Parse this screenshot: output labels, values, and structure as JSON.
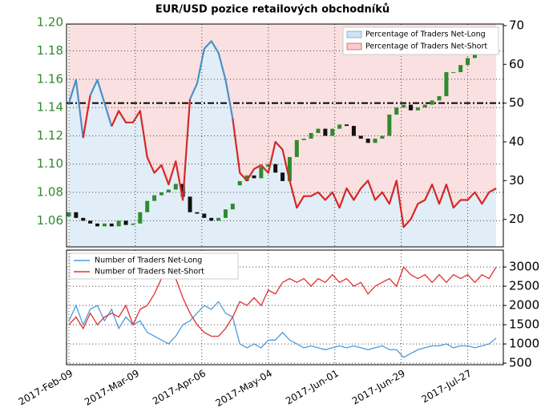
{
  "chart_data": [
    {
      "type": "candlestick_line",
      "title": "EUR/USD pozice retailových obchodníků",
      "x": [
        "2017-02-09",
        "2017-02-12",
        "2017-02-15",
        "2017-02-18",
        "2017-02-21",
        "2017-02-24",
        "2017-02-27",
        "2017-03-02",
        "2017-03-05",
        "2017-03-08",
        "2017-03-11",
        "2017-03-14",
        "2017-03-17",
        "2017-03-20",
        "2017-03-23",
        "2017-03-26",
        "2017-03-29",
        "2017-04-01",
        "2017-04-04",
        "2017-04-07",
        "2017-04-10",
        "2017-04-13",
        "2017-04-16",
        "2017-04-19",
        "2017-04-22",
        "2017-04-25",
        "2017-04-28",
        "2017-05-01",
        "2017-05-04",
        "2017-05-07",
        "2017-05-10",
        "2017-05-13",
        "2017-05-16",
        "2017-05-19",
        "2017-05-22",
        "2017-05-25",
        "2017-05-28",
        "2017-05-31",
        "2017-06-03",
        "2017-06-06",
        "2017-06-09",
        "2017-06-12",
        "2017-06-15",
        "2017-06-18",
        "2017-06-21",
        "2017-06-24",
        "2017-06-27",
        "2017-06-30",
        "2017-07-03",
        "2017-07-06",
        "2017-07-09",
        "2017-07-12",
        "2017-07-15",
        "2017-07-18",
        "2017-07-21",
        "2017-07-24",
        "2017-07-27",
        "2017-07-30",
        "2017-08-02",
        "2017-08-05",
        "2017-08-08"
      ],
      "xlim": [
        "2017-02-08",
        "2017-08-11"
      ],
      "ylim": [
        1.0415,
        1.199
      ],
      "yticks": [
        1.06,
        1.08,
        {
          "value": 1.1,
          "label": "1.10"
        },
        1.12,
        1.14,
        1.16,
        1.18,
        {
          "value": 1.2,
          "label": "1.20"
        }
      ],
      "y2lim": [
        12.9,
        70.4
      ],
      "y2ticks": [
        20,
        30,
        40,
        50,
        60,
        70
      ],
      "hline": 50,
      "grid": true,
      "price": {
        "up_color": "#2e8b2e",
        "down_color": "#111111",
        "open": [
          1.063,
          1.066,
          1.062,
          1.06,
          1.058,
          1.056,
          1.058,
          1.056,
          1.06,
          1.057,
          1.058,
          1.066,
          1.074,
          1.078,
          1.08,
          1.082,
          1.086,
          1.077,
          1.066,
          1.065,
          1.062,
          1.06,
          1.062,
          1.068,
          1.085,
          1.088,
          1.092,
          1.09,
          1.098,
          1.1,
          1.094,
          1.088,
          1.105,
          1.117,
          1.118,
          1.122,
          1.125,
          1.12,
          1.125,
          1.128,
          1.127,
          1.12,
          1.118,
          1.115,
          1.118,
          1.12,
          1.135,
          1.14,
          1.142,
          1.138,
          1.14,
          1.142,
          1.145,
          1.148,
          1.165,
          1.165,
          1.17,
          1.175,
          1.18,
          1.185,
          1.18
        ],
        "close": [
          1.066,
          1.062,
          1.06,
          1.058,
          1.056,
          1.058,
          1.056,
          1.06,
          1.057,
          1.058,
          1.066,
          1.074,
          1.078,
          1.08,
          1.082,
          1.086,
          1.077,
          1.066,
          1.065,
          1.062,
          1.06,
          1.062,
          1.068,
          1.072,
          1.088,
          1.092,
          1.09,
          1.098,
          1.1,
          1.094,
          1.088,
          1.105,
          1.117,
          1.118,
          1.122,
          1.125,
          1.12,
          1.125,
          1.128,
          1.127,
          1.12,
          1.118,
          1.115,
          1.118,
          1.12,
          1.135,
          1.14,
          1.142,
          1.138,
          1.14,
          1.142,
          1.145,
          1.148,
          1.165,
          1.165,
          1.17,
          1.175,
          1.18,
          1.185,
          1.18,
          1.178
        ]
      },
      "legend": [
        {
          "name": "Percentage of Traders Net-Long",
          "color": "#4a90c8",
          "fill": "#cfe3f2"
        },
        {
          "name": "Percentage of Traders Net-Short",
          "color": "#d62728",
          "fill": "#f6cccc"
        }
      ],
      "series": [
        {
          "name": "Percentage of Traders Net-Long",
          "axis": "y2",
          "values": [
            50,
            56,
            41,
            52,
            56,
            50,
            44,
            48,
            45,
            45,
            48,
            36,
            32,
            34,
            29,
            35,
            25,
            51,
            55,
            64,
            66,
            63,
            56,
            46,
            32,
            30,
            33,
            34,
            32,
            40,
            38,
            30,
            23,
            26,
            26,
            27,
            25,
            27,
            23,
            28,
            25,
            28,
            30,
            25,
            27,
            24,
            30,
            18,
            20,
            24,
            25,
            29,
            24,
            29,
            23,
            25,
            25,
            27,
            24,
            27,
            28
          ]
        }
      ]
    },
    {
      "type": "line",
      "ylim": [
        460,
        3440
      ],
      "yticks": [
        500,
        1000,
        1500,
        2000,
        2500,
        3000
      ],
      "grid": true,
      "xticks": [
        {
          "value": "2017-02-09",
          "label": "2017-Feb-09"
        },
        {
          "value": "2017-03-09",
          "label": "2017-Mar-09"
        },
        {
          "value": "2017-04-06",
          "label": "2017-Apr-06"
        },
        {
          "value": "2017-05-04",
          "label": "2017-May-04"
        },
        {
          "value": "2017-06-01",
          "label": "2017-Jun-01"
        },
        {
          "value": "2017-06-29",
          "label": "2017-Jun-29"
        },
        {
          "value": "2017-07-27",
          "label": "2017-Jul-27"
        }
      ],
      "series": [
        {
          "name": "Number of Traders Net-Long",
          "color": "#4a9be0",
          "values": [
            1600,
            2000,
            1500,
            1900,
            2000,
            1600,
            1900,
            1400,
            1700,
            1500,
            1600,
            1300,
            1200,
            1100,
            1000,
            1200,
            1500,
            1600,
            1800,
            2000,
            1900,
            2100,
            1800,
            1700,
            1000,
            900,
            1000,
            900,
            1100,
            1100,
            1300,
            1100,
            1000,
            900,
            950,
            900,
            850,
            900,
            950,
            900,
            950,
            900,
            850,
            900,
            950,
            850,
            850,
            650,
            750,
            850,
            900,
            950,
            950,
            1000,
            900,
            950,
            950,
            900,
            950,
            1000,
            1150
          ]
        },
        {
          "name": "Number of Traders Net-Short",
          "color": "#e03030",
          "values": [
            1500,
            1700,
            1400,
            1800,
            1500,
            1700,
            1800,
            1700,
            2000,
            1500,
            1900,
            2000,
            2300,
            2700,
            2800,
            2700,
            2200,
            1800,
            1500,
            1300,
            1200,
            1200,
            1400,
            1700,
            2100,
            2000,
            2200,
            2000,
            2400,
            2300,
            2600,
            2700,
            2600,
            2700,
            2500,
            2700,
            2600,
            2800,
            2600,
            2700,
            2500,
            2600,
            2300,
            2500,
            2600,
            2700,
            2500,
            3000,
            2800,
            2700,
            2800,
            2600,
            2800,
            2600,
            2800,
            2700,
            2800,
            2600,
            2800,
            2700,
            3000
          ]
        }
      ]
    }
  ]
}
